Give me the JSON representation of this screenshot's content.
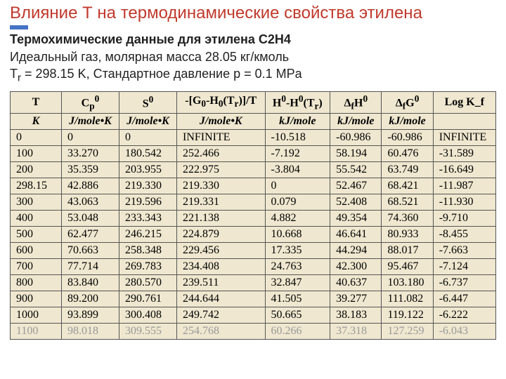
{
  "title": "Влияние Т на термодинамические свойства этилена",
  "heading_bold": "Термохимические данные для этилена С2Н4",
  "sub_line2": "Идеальный газ, молярная масса 28.05 кг/кмоль",
  "sub_line3_a": "T",
  "sub_line3_b": "r",
  "sub_line3_c": " = 298.15 K, Стандартное давление p = 0.1 MPa",
  "table": {
    "columns_row1": [
      "T",
      "C_p^0",
      "S^0",
      "-[G_0-H_0(T_r)]/T",
      "H^0-H^0(T_r)",
      "Δ_fH^0",
      "Δ_fG^0",
      "Log K_f"
    ],
    "columns_row2": [
      "K",
      "J/mole•K",
      "J/mole•K",
      "J/mole•K",
      "kJ/mole",
      "kJ/mole",
      "kJ/mole",
      ""
    ],
    "rows": [
      [
        "0",
        "0",
        "0",
        "INFINITE",
        "-10.518",
        "-60.986",
        "-60.986",
        "INFINITE"
      ],
      [
        "100",
        "33.270",
        "180.542",
        "252.466",
        "-7.192",
        "58.194",
        "60.476",
        "-31.589"
      ],
      [
        "200",
        "35.359",
        "203.955",
        "222.975",
        "-3.804",
        "55.542",
        "63.749",
        "-16.649"
      ],
      [
        "298.15",
        "42.886",
        "219.330",
        "219.330",
        "0",
        "52.467",
        "68.421",
        "-11.987"
      ],
      [
        "300",
        "43.063",
        "219.596",
        "219.331",
        "0.079",
        "52.408",
        "68.521",
        "-11.930"
      ],
      [
        "400",
        "53.048",
        "233.343",
        "221.138",
        "4.882",
        "49.354",
        "74.360",
        "-9.710"
      ],
      [
        "500",
        "62.477",
        "246.215",
        "224.879",
        "10.668",
        "46.641",
        "80.933",
        "-8.455"
      ],
      [
        "600",
        "70.663",
        "258.348",
        "229.456",
        "17.335",
        "44.294",
        "88.017",
        "-7.663"
      ],
      [
        "700",
        "77.714",
        "269.783",
        "234.408",
        "24.763",
        "42.300",
        "95.467",
        "-7.124"
      ],
      [
        "800",
        "83.840",
        "280.570",
        "239.511",
        "32.847",
        "40.637",
        "103.180",
        "-6.737"
      ],
      [
        "900",
        "89.200",
        "290.761",
        "244.644",
        "41.505",
        "39.277",
        "111.082",
        "-6.447"
      ],
      [
        "1000",
        "93.899",
        "300.408",
        "249.742",
        "50.665",
        "38.183",
        "119.122",
        "-6.222"
      ],
      [
        "1100",
        "98.018",
        "309.555",
        "254.768",
        "60.266",
        "37.318",
        "127.259",
        "-6.043"
      ]
    ],
    "header_bg": "#efe7cf",
    "body_bg": "#efe7cf",
    "border_color": "#555555",
    "font_family": "Times New Roman",
    "font_size_pt": 12
  },
  "colors": {
    "title": "#c0392b",
    "text": "#222222",
    "accent_bar": "#4472c4",
    "faded_row": "#999999",
    "page_bg": "#ffffff"
  }
}
